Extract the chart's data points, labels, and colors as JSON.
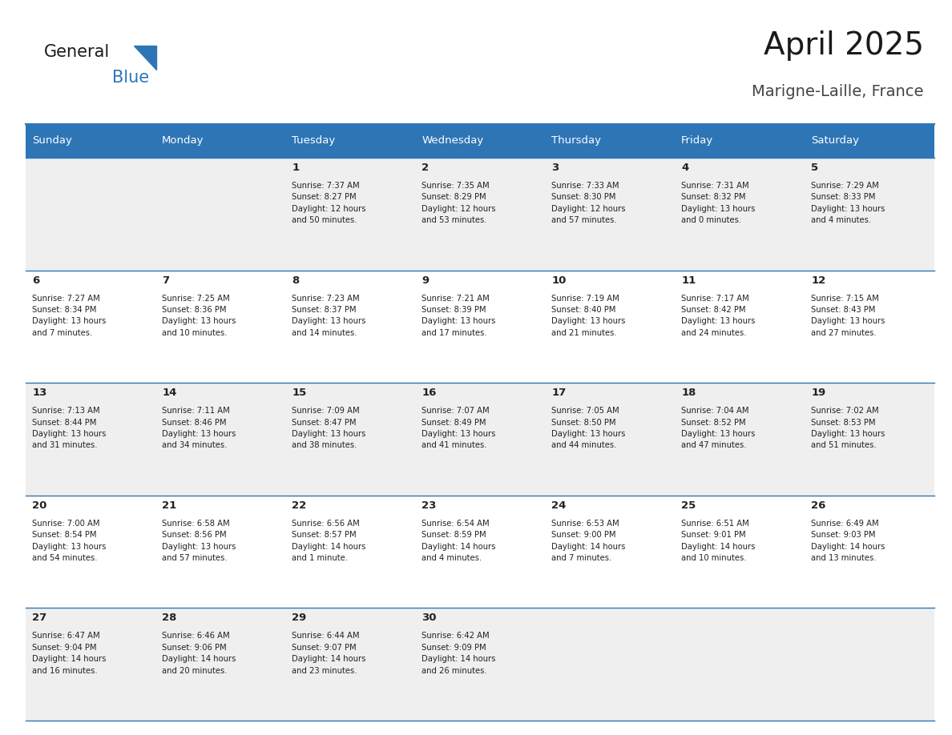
{
  "title": "April 2025",
  "subtitle": "Marigne-Laille, France",
  "days_of_week": [
    "Sunday",
    "Monday",
    "Tuesday",
    "Wednesday",
    "Thursday",
    "Friday",
    "Saturday"
  ],
  "header_bg": "#2E75B6",
  "header_text": "#FFFFFF",
  "row_bg_odd": "#EFEFEF",
  "row_bg_even": "#FFFFFF",
  "cell_text": "#222222",
  "border_color": "#2E75B6",
  "calendar": [
    [
      {
        "day": "",
        "info": ""
      },
      {
        "day": "",
        "info": ""
      },
      {
        "day": "1",
        "info": "Sunrise: 7:37 AM\nSunset: 8:27 PM\nDaylight: 12 hours\nand 50 minutes."
      },
      {
        "day": "2",
        "info": "Sunrise: 7:35 AM\nSunset: 8:29 PM\nDaylight: 12 hours\nand 53 minutes."
      },
      {
        "day": "3",
        "info": "Sunrise: 7:33 AM\nSunset: 8:30 PM\nDaylight: 12 hours\nand 57 minutes."
      },
      {
        "day": "4",
        "info": "Sunrise: 7:31 AM\nSunset: 8:32 PM\nDaylight: 13 hours\nand 0 minutes."
      },
      {
        "day": "5",
        "info": "Sunrise: 7:29 AM\nSunset: 8:33 PM\nDaylight: 13 hours\nand 4 minutes."
      }
    ],
    [
      {
        "day": "6",
        "info": "Sunrise: 7:27 AM\nSunset: 8:34 PM\nDaylight: 13 hours\nand 7 minutes."
      },
      {
        "day": "7",
        "info": "Sunrise: 7:25 AM\nSunset: 8:36 PM\nDaylight: 13 hours\nand 10 minutes."
      },
      {
        "day": "8",
        "info": "Sunrise: 7:23 AM\nSunset: 8:37 PM\nDaylight: 13 hours\nand 14 minutes."
      },
      {
        "day": "9",
        "info": "Sunrise: 7:21 AM\nSunset: 8:39 PM\nDaylight: 13 hours\nand 17 minutes."
      },
      {
        "day": "10",
        "info": "Sunrise: 7:19 AM\nSunset: 8:40 PM\nDaylight: 13 hours\nand 21 minutes."
      },
      {
        "day": "11",
        "info": "Sunrise: 7:17 AM\nSunset: 8:42 PM\nDaylight: 13 hours\nand 24 minutes."
      },
      {
        "day": "12",
        "info": "Sunrise: 7:15 AM\nSunset: 8:43 PM\nDaylight: 13 hours\nand 27 minutes."
      }
    ],
    [
      {
        "day": "13",
        "info": "Sunrise: 7:13 AM\nSunset: 8:44 PM\nDaylight: 13 hours\nand 31 minutes."
      },
      {
        "day": "14",
        "info": "Sunrise: 7:11 AM\nSunset: 8:46 PM\nDaylight: 13 hours\nand 34 minutes."
      },
      {
        "day": "15",
        "info": "Sunrise: 7:09 AM\nSunset: 8:47 PM\nDaylight: 13 hours\nand 38 minutes."
      },
      {
        "day": "16",
        "info": "Sunrise: 7:07 AM\nSunset: 8:49 PM\nDaylight: 13 hours\nand 41 minutes."
      },
      {
        "day": "17",
        "info": "Sunrise: 7:05 AM\nSunset: 8:50 PM\nDaylight: 13 hours\nand 44 minutes."
      },
      {
        "day": "18",
        "info": "Sunrise: 7:04 AM\nSunset: 8:52 PM\nDaylight: 13 hours\nand 47 minutes."
      },
      {
        "day": "19",
        "info": "Sunrise: 7:02 AM\nSunset: 8:53 PM\nDaylight: 13 hours\nand 51 minutes."
      }
    ],
    [
      {
        "day": "20",
        "info": "Sunrise: 7:00 AM\nSunset: 8:54 PM\nDaylight: 13 hours\nand 54 minutes."
      },
      {
        "day": "21",
        "info": "Sunrise: 6:58 AM\nSunset: 8:56 PM\nDaylight: 13 hours\nand 57 minutes."
      },
      {
        "day": "22",
        "info": "Sunrise: 6:56 AM\nSunset: 8:57 PM\nDaylight: 14 hours\nand 1 minute."
      },
      {
        "day": "23",
        "info": "Sunrise: 6:54 AM\nSunset: 8:59 PM\nDaylight: 14 hours\nand 4 minutes."
      },
      {
        "day": "24",
        "info": "Sunrise: 6:53 AM\nSunset: 9:00 PM\nDaylight: 14 hours\nand 7 minutes."
      },
      {
        "day": "25",
        "info": "Sunrise: 6:51 AM\nSunset: 9:01 PM\nDaylight: 14 hours\nand 10 minutes."
      },
      {
        "day": "26",
        "info": "Sunrise: 6:49 AM\nSunset: 9:03 PM\nDaylight: 14 hours\nand 13 minutes."
      }
    ],
    [
      {
        "day": "27",
        "info": "Sunrise: 6:47 AM\nSunset: 9:04 PM\nDaylight: 14 hours\nand 16 minutes."
      },
      {
        "day": "28",
        "info": "Sunrise: 6:46 AM\nSunset: 9:06 PM\nDaylight: 14 hours\nand 20 minutes."
      },
      {
        "day": "29",
        "info": "Sunrise: 6:44 AM\nSunset: 9:07 PM\nDaylight: 14 hours\nand 23 minutes."
      },
      {
        "day": "30",
        "info": "Sunrise: 6:42 AM\nSunset: 9:09 PM\nDaylight: 14 hours\nand 26 minutes."
      },
      {
        "day": "",
        "info": ""
      },
      {
        "day": "",
        "info": ""
      },
      {
        "day": "",
        "info": ""
      }
    ]
  ],
  "logo_text1": "General",
  "logo_text2": "Blue",
  "logo_color1": "#1a1a1a",
  "logo_color2": "#2E75B6",
  "logo_triangle_color": "#2E75B6",
  "figsize": [
    11.88,
    9.18
  ],
  "dpi": 100
}
